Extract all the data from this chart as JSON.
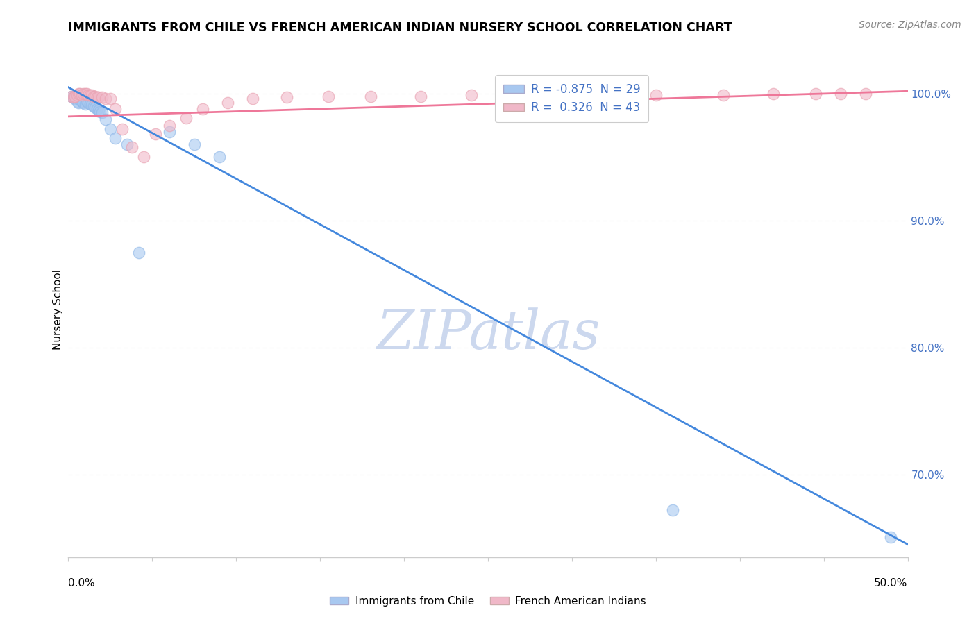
{
  "title": "IMMIGRANTS FROM CHILE VS FRENCH AMERICAN INDIAN NURSERY SCHOOL CORRELATION CHART",
  "source": "Source: ZipAtlas.com",
  "ylabel": "Nursery School",
  "ytick_labels": [
    "100.0%",
    "90.0%",
    "80.0%",
    "70.0%"
  ],
  "ytick_values": [
    1.0,
    0.9,
    0.8,
    0.7
  ],
  "xlim": [
    0.0,
    0.5
  ],
  "ylim": [
    0.635,
    1.025
  ],
  "legend_blue_r": "-0.875",
  "legend_blue_n": "29",
  "legend_pink_r": "0.326",
  "legend_pink_n": "43",
  "blue_color": "#a8c8f0",
  "pink_color": "#f0b8c8",
  "blue_edge_color": "#90b8e8",
  "pink_edge_color": "#e8a0b0",
  "blue_line_color": "#4488dd",
  "pink_line_color": "#ee7799",
  "watermark": "ZIPatlas",
  "watermark_color": "#ccd8ee",
  "blue_scatter_x": [
    0.002,
    0.003,
    0.004,
    0.005,
    0.006,
    0.007,
    0.008,
    0.009,
    0.01,
    0.011,
    0.012,
    0.013,
    0.014,
    0.015,
    0.016,
    0.017,
    0.018,
    0.019,
    0.02,
    0.022,
    0.025,
    0.028,
    0.035,
    0.042,
    0.06,
    0.075,
    0.09,
    0.36,
    0.49
  ],
  "blue_scatter_y": [
    0.998,
    0.997,
    0.996,
    0.994,
    0.993,
    0.995,
    0.994,
    0.993,
    0.992,
    0.994,
    0.993,
    0.992,
    0.991,
    0.99,
    0.989,
    0.988,
    0.987,
    0.986,
    0.985,
    0.98,
    0.972,
    0.965,
    0.96,
    0.875,
    0.97,
    0.96,
    0.95,
    0.672,
    0.651
  ],
  "pink_scatter_x": [
    0.002,
    0.003,
    0.004,
    0.005,
    0.006,
    0.007,
    0.008,
    0.009,
    0.01,
    0.011,
    0.012,
    0.013,
    0.014,
    0.015,
    0.016,
    0.017,
    0.018,
    0.02,
    0.022,
    0.025,
    0.028,
    0.032,
    0.038,
    0.045,
    0.052,
    0.06,
    0.07,
    0.08,
    0.095,
    0.11,
    0.13,
    0.155,
    0.18,
    0.21,
    0.24,
    0.275,
    0.31,
    0.35,
    0.39,
    0.42,
    0.445,
    0.46,
    0.475
  ],
  "pink_scatter_y": [
    0.998,
    0.997,
    0.998,
    0.999,
    1.0,
    1.0,
    0.999,
    1.0,
    1.0,
    1.0,
    0.999,
    0.999,
    0.999,
    0.998,
    0.998,
    0.997,
    0.997,
    0.997,
    0.996,
    0.996,
    0.988,
    0.972,
    0.958,
    0.95,
    0.968,
    0.975,
    0.981,
    0.988,
    0.993,
    0.996,
    0.997,
    0.998,
    0.998,
    0.998,
    0.999,
    0.999,
    0.999,
    0.999,
    0.999,
    1.0,
    1.0,
    1.0,
    1.0
  ],
  "blue_line_x": [
    0.0,
    0.5
  ],
  "blue_line_y": [
    1.005,
    0.645
  ],
  "pink_line_x": [
    0.0,
    0.5
  ],
  "pink_line_y": [
    0.982,
    1.002
  ],
  "xtick_positions": [
    0.0,
    0.05,
    0.1,
    0.15,
    0.2,
    0.25,
    0.3,
    0.35,
    0.4,
    0.45,
    0.5
  ],
  "grid_color": "#dddddd",
  "spine_color": "#cccccc",
  "ytick_color": "#4472c4"
}
